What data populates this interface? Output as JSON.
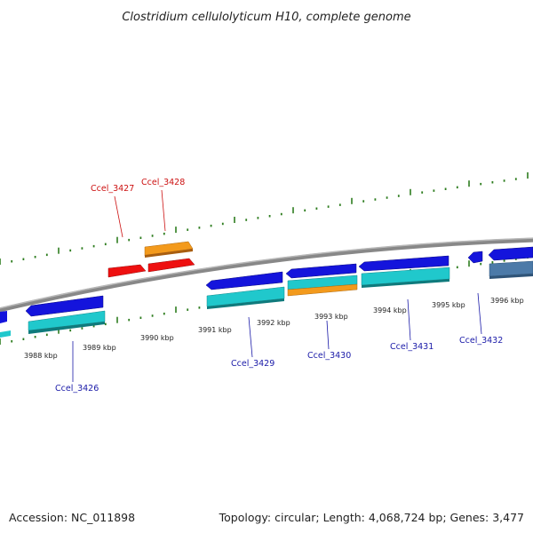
{
  "title": "Clostridium cellulolyticum H10, complete genome",
  "footer": {
    "accession": "Accession: NC_011898",
    "topology": "Topology: circular; Length: 4,068,724 bp; Genes: 3,477"
  },
  "colors": {
    "backbone": "#888888",
    "tick": "#2e7d1f",
    "blue_gene": "#1414dc",
    "cyan_gene": "#20c8cc",
    "orange_gene": "#f39a1c",
    "red_gene": "#ee1010",
    "steel_gene": "#4c7aa8",
    "label_blue": "#1a1aa8",
    "label_red": "#cc1111"
  },
  "kbp_labels": [
    "3988 kbp",
    "3989 kbp",
    "3990 kbp",
    "3991 kbp",
    "3992 kbp",
    "3993 kbp",
    "3994 kbp",
    "3995 kbp",
    "3996 kbp"
  ],
  "gene_labels": {
    "ccel_3426": "Ccel_3426",
    "ccel_3427": "Ccel_3427",
    "ccel_3428": "Ccel_3428",
    "ccel_3429": "Ccel_3429",
    "ccel_3430": "Ccel_3430",
    "ccel_3431": "Ccel_3431",
    "ccel_3432": "Ccel_3432"
  }
}
